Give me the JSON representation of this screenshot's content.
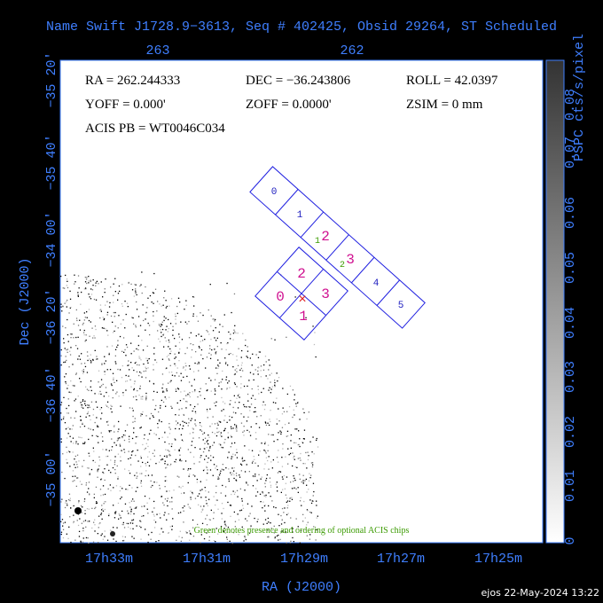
{
  "title": "Name Swift J1728.9−3613, Seq # 402425, Obsid 29264, ST Scheduled",
  "top_axis": {
    "ticks": [
      "263",
      "262"
    ]
  },
  "left_axis": {
    "label": "Dec (J2000)",
    "ticks": [
      "−35 20'",
      "−35 40'",
      "−34 00'",
      "−36 20'",
      "−36 40'",
      "−35 00'"
    ]
  },
  "bottom_axis": {
    "label": "RA (J2000)",
    "ticks": [
      "17h33m",
      "17h31m",
      "17h29m",
      "17h27m",
      "17h25m"
    ]
  },
  "info": {
    "lines": [
      [
        "RA = 262.244333",
        "DEC = −36.243806",
        "ROLL = 42.0397"
      ],
      [
        "YOFF =   0.000'",
        "ZOFF =  0.0000'",
        "ZSIM = 0 mm"
      ],
      [
        "ACIS PB = WT0046C034"
      ]
    ]
  },
  "colorbar": {
    "label": "PSPC cts/s/pixel",
    "ticks": [
      "0",
      "0.01",
      "0.02",
      "0.03",
      "0.04",
      "0.05",
      "0.06",
      "0.07",
      "0.08"
    ]
  },
  "acis_s": {
    "chips": [
      "0",
      "1",
      "2",
      "3",
      "4",
      "5"
    ],
    "optional": [
      "1",
      "2"
    ]
  },
  "acis_i": {
    "chips": [
      "0",
      "1",
      "2",
      "3"
    ]
  },
  "note": "Green denotes presence and ordering of optional ACIS chips",
  "footer": "ejos 22-May-2024 13:22"
}
